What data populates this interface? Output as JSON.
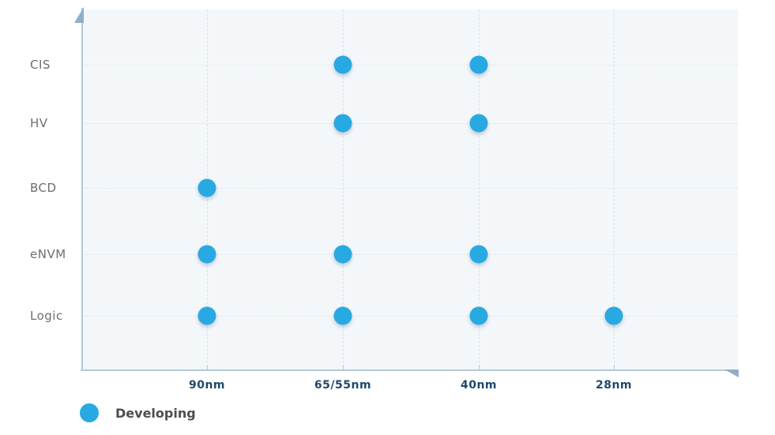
{
  "chart_data": {
    "type": "scatter",
    "title": "",
    "xlabel": "",
    "ylabel": "",
    "x_categories": [
      "90nm",
      "65/55nm",
      "40nm",
      "28nm"
    ],
    "y_categories": [
      "CIS",
      "HV",
      "BCD",
      "eNVM",
      "Logic"
    ],
    "grid": true,
    "legend_position": "bottom-left",
    "series": [
      {
        "name": "Developing",
        "color": "#29a9e2",
        "points": [
          {
            "x": "65/55nm",
            "y": "CIS"
          },
          {
            "x": "40nm",
            "y": "CIS"
          },
          {
            "x": "65/55nm",
            "y": "HV"
          },
          {
            "x": "40nm",
            "y": "HV"
          },
          {
            "x": "90nm",
            "y": "BCD"
          },
          {
            "x": "90nm",
            "y": "eNVM"
          },
          {
            "x": "65/55nm",
            "y": "eNVM"
          },
          {
            "x": "40nm",
            "y": "eNVM"
          },
          {
            "x": "90nm",
            "y": "Logic"
          },
          {
            "x": "65/55nm",
            "y": "Logic"
          },
          {
            "x": "40nm",
            "y": "Logic"
          },
          {
            "x": "28nm",
            "y": "Logic"
          }
        ]
      }
    ],
    "legend": [
      {
        "label": "Developing",
        "color": "#29a9e2"
      }
    ]
  },
  "colors": {
    "plot_background": "#f3f7fa",
    "axis": "#b3c9da",
    "arrow": "#8fafc9",
    "grid_line": "#dde3e9",
    "x_tick_label": "#1f486e",
    "y_tick_label": "#6b6f73",
    "legend_text": "#4d4d4d",
    "point": "#29a9e2"
  }
}
